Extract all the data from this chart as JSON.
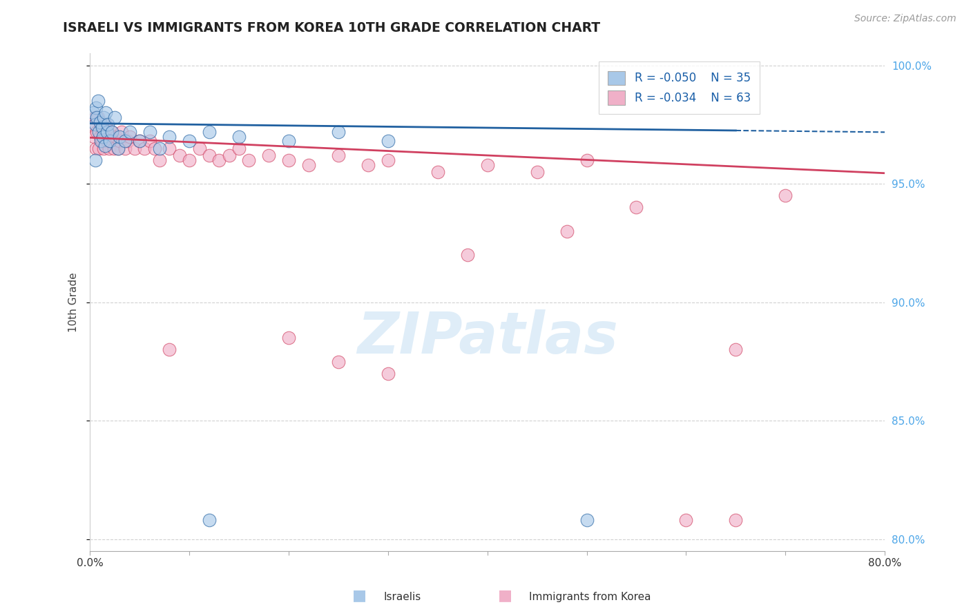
{
  "title": "ISRAELI VS IMMIGRANTS FROM KOREA 10TH GRADE CORRELATION CHART",
  "source": "Source: ZipAtlas.com",
  "ylabel": "10th Grade",
  "legend_label1": "Israelis",
  "legend_label2": "Immigrants from Korea",
  "R1": -0.05,
  "N1": 35,
  "R2": -0.034,
  "N2": 63,
  "color1": "#a8c8e8",
  "color2": "#f0b0c8",
  "line_color1": "#2060a0",
  "line_color2": "#d04060",
  "xlim": [
    0.0,
    0.8
  ],
  "ylim": [
    0.795,
    1.005
  ],
  "yticks": [
    0.8,
    0.85,
    0.9,
    0.95,
    1.0
  ],
  "ytick_labels": [
    "80.0%",
    "85.0%",
    "90.0%",
    "95.0%",
    "100.0%"
  ],
  "xticks": [
    0.0,
    0.1,
    0.2,
    0.3,
    0.4,
    0.5,
    0.6,
    0.7,
    0.8
  ],
  "xtick_labels": [
    "0.0%",
    "",
    "",
    "",
    "",
    "",
    "",
    "",
    "80.0%"
  ],
  "watermark": "ZIPatlas",
  "bg_color": "#ffffff",
  "israeli_x": [
    0.003,
    0.005,
    0.006,
    0.007,
    0.008,
    0.009,
    0.01,
    0.011,
    0.012,
    0.013,
    0.014,
    0.015,
    0.016,
    0.017,
    0.018,
    0.02,
    0.022,
    0.025,
    0.028,
    0.03,
    0.035,
    0.04,
    0.05,
    0.06,
    0.07,
    0.08,
    0.1,
    0.12,
    0.15,
    0.2,
    0.25,
    0.3,
    0.12,
    0.5,
    0.005
  ],
  "israeli_y": [
    0.98,
    0.975,
    0.982,
    0.978,
    0.985,
    0.972,
    0.976,
    0.968,
    0.974,
    0.97,
    0.978,
    0.966,
    0.98,
    0.972,
    0.975,
    0.968,
    0.972,
    0.978,
    0.965,
    0.97,
    0.968,
    0.972,
    0.968,
    0.972,
    0.965,
    0.97,
    0.968,
    0.972,
    0.97,
    0.968,
    0.972,
    0.968,
    0.808,
    0.808,
    0.96
  ],
  "korea_x": [
    0.002,
    0.004,
    0.005,
    0.006,
    0.007,
    0.008,
    0.009,
    0.01,
    0.011,
    0.012,
    0.013,
    0.014,
    0.015,
    0.016,
    0.017,
    0.018,
    0.019,
    0.02,
    0.022,
    0.024,
    0.026,
    0.028,
    0.03,
    0.032,
    0.035,
    0.038,
    0.04,
    0.045,
    0.05,
    0.055,
    0.06,
    0.065,
    0.07,
    0.08,
    0.09,
    0.1,
    0.11,
    0.12,
    0.13,
    0.14,
    0.15,
    0.16,
    0.18,
    0.2,
    0.22,
    0.25,
    0.28,
    0.3,
    0.35,
    0.4,
    0.45,
    0.5,
    0.38,
    0.48,
    0.55,
    0.6,
    0.65,
    0.7,
    0.65,
    0.3,
    0.2,
    0.25,
    0.08
  ],
  "korea_y": [
    0.975,
    0.97,
    0.978,
    0.965,
    0.972,
    0.978,
    0.965,
    0.97,
    0.975,
    0.968,
    0.972,
    0.965,
    0.97,
    0.975,
    0.968,
    0.972,
    0.965,
    0.968,
    0.972,
    0.965,
    0.97,
    0.965,
    0.968,
    0.972,
    0.965,
    0.968,
    0.97,
    0.965,
    0.968,
    0.965,
    0.968,
    0.965,
    0.96,
    0.965,
    0.962,
    0.96,
    0.965,
    0.962,
    0.96,
    0.962,
    0.965,
    0.96,
    0.962,
    0.96,
    0.958,
    0.962,
    0.958,
    0.96,
    0.955,
    0.958,
    0.955,
    0.96,
    0.92,
    0.93,
    0.94,
    0.808,
    0.808,
    0.945,
    0.88,
    0.87,
    0.885,
    0.875,
    0.88
  ],
  "trend1_x0": 0.0,
  "trend1_y0": 0.9755,
  "trend1_x1_solid": 0.65,
  "trend1_y1_solid": 0.9725,
  "trend1_x1_dash": 0.8,
  "trend1_y1_dash": 0.9718,
  "trend2_x0": 0.0,
  "trend2_y0": 0.9695,
  "trend2_x1": 0.8,
  "trend2_y1": 0.9545
}
